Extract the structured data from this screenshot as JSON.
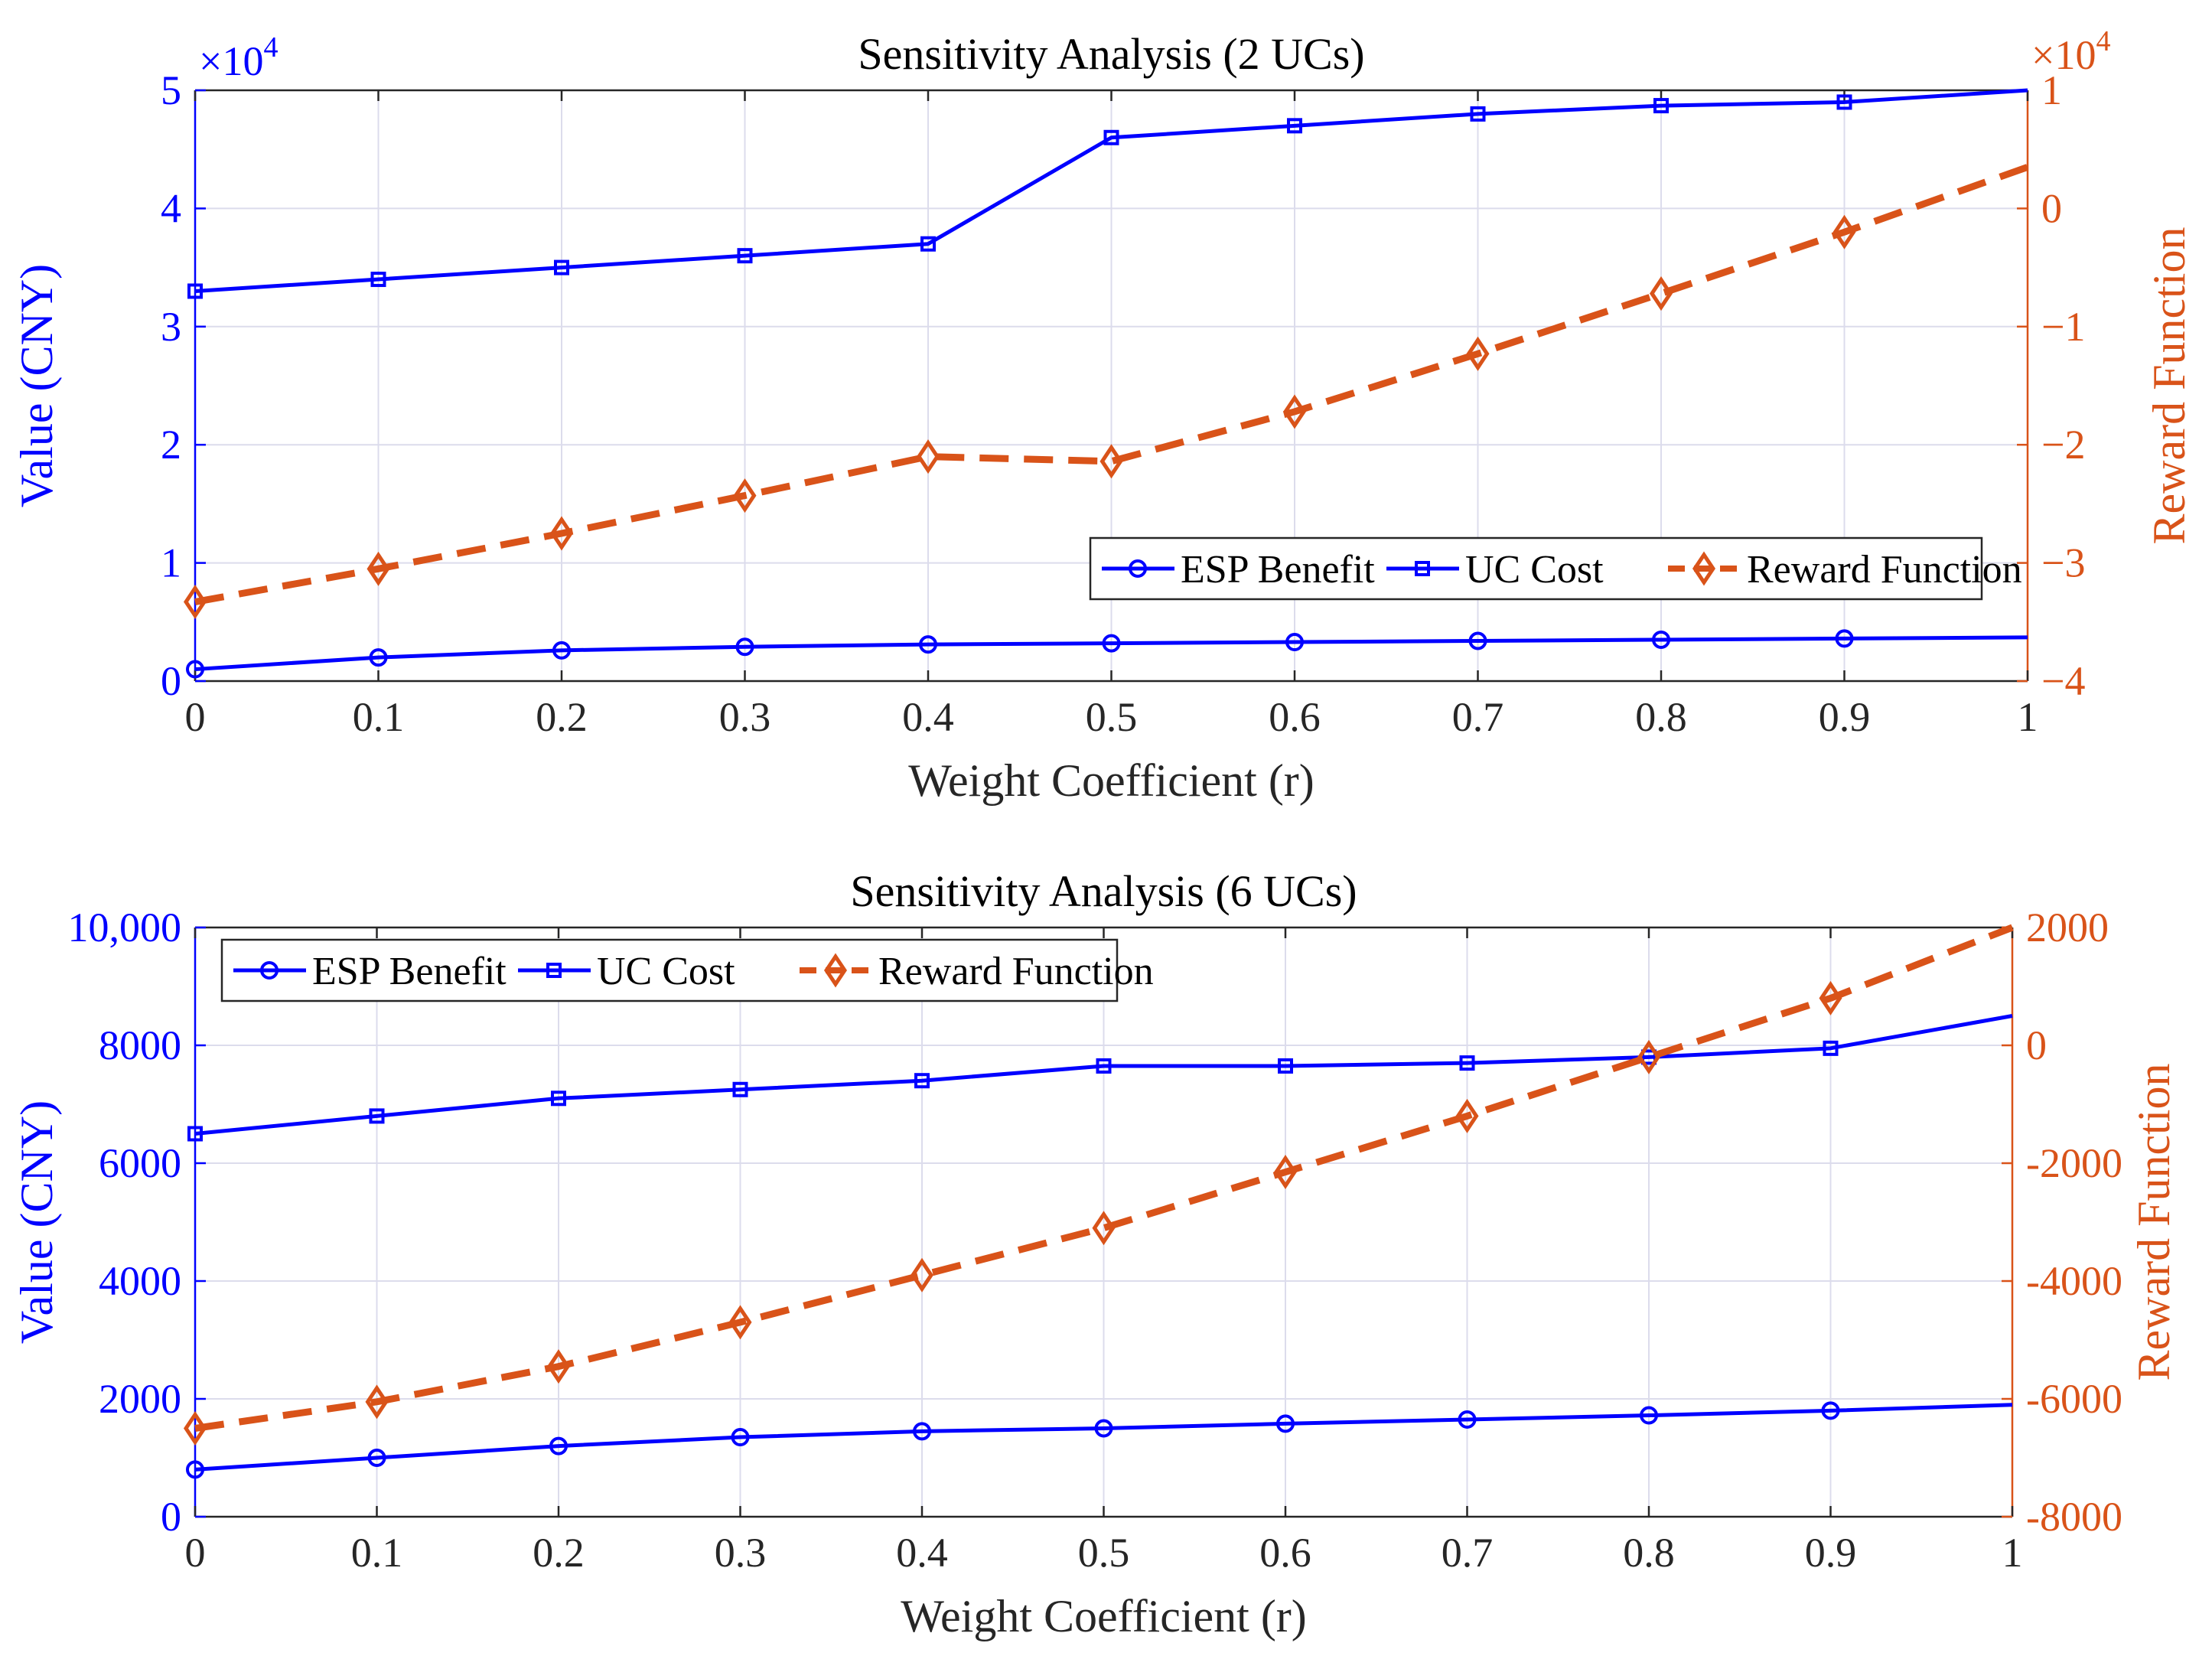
{
  "chart_data": [
    {
      "type": "line",
      "title": "Sensitivity Analysis (2 UCs)",
      "xlabel": "Weight Coefficient (r)",
      "ylabel_left": "Value (CNY)",
      "ylabel_right": "Reward Function",
      "left_exponent_label": "×10",
      "left_exponent_power": "4",
      "right_exponent_label": "×10",
      "right_exponent_power": "4",
      "x": [
        0,
        0.1,
        0.2,
        0.3,
        0.4,
        0.5,
        0.6,
        0.7,
        0.8,
        0.9,
        1
      ],
      "xticks": [
        "0",
        "0.1",
        "0.2",
        "0.3",
        "0.4",
        "0.5",
        "0.6",
        "0.7",
        "0.8",
        "0.9",
        "1"
      ],
      "xlim": [
        0,
        1
      ],
      "ylim_left": [
        0,
        5
      ],
      "yticks_left": [
        "0",
        "1",
        "2",
        "3",
        "4",
        "5"
      ],
      "ylim_right": [
        -4,
        1
      ],
      "yticks_right": [
        "−4",
        "−3",
        "−2",
        "−1",
        "0",
        "1"
      ],
      "grid": true,
      "legend_position": "lower-right",
      "series": [
        {
          "name": "ESP Benefit",
          "axis": "left",
          "marker": "circle",
          "style": "solid",
          "values": [
            0.1,
            0.2,
            0.26,
            0.29,
            0.31,
            0.32,
            0.33,
            0.34,
            0.35,
            0.36,
            0.37
          ]
        },
        {
          "name": "UC Cost",
          "axis": "left",
          "marker": "square",
          "style": "solid",
          "values": [
            3.3,
            3.4,
            3.5,
            3.6,
            3.7,
            4.6,
            4.7,
            4.8,
            4.87,
            4.9,
            5.0
          ]
        },
        {
          "name": "Reward Function",
          "axis": "right",
          "marker": "diamond",
          "style": "dashed",
          "values": [
            -3.33,
            -3.05,
            -2.75,
            -2.43,
            -2.1,
            -2.14,
            -1.72,
            -1.23,
            -0.72,
            -0.2,
            0.35
          ]
        }
      ]
    },
    {
      "type": "line",
      "title": "Sensitivity Analysis (6 UCs)",
      "xlabel": "Weight Coefficient (r)",
      "ylabel_left": "Value (CNY)",
      "ylabel_right": "Reward Function",
      "x": [
        0,
        0.1,
        0.2,
        0.3,
        0.4,
        0.5,
        0.6,
        0.7,
        0.8,
        0.9,
        1
      ],
      "xticks": [
        "0",
        "0.1",
        "0.2",
        "0.3",
        "0.4",
        "0.5",
        "0.6",
        "0.7",
        "0.8",
        "0.9",
        "1"
      ],
      "xlim": [
        0,
        1
      ],
      "ylim_left": [
        0,
        10000
      ],
      "yticks_left": [
        "0",
        "2000",
        "4000",
        "6000",
        "8000",
        "10,000"
      ],
      "ylim_right": [
        -8000,
        2000
      ],
      "yticks_right": [
        "-8000",
        "-6000",
        "-4000",
        "-2000",
        "0",
        "2000"
      ],
      "grid": true,
      "legend_position": "top-left",
      "series": [
        {
          "name": "ESP Benefit",
          "axis": "left",
          "marker": "circle",
          "style": "solid",
          "values": [
            800,
            1000,
            1200,
            1350,
            1450,
            1500,
            1580,
            1650,
            1720,
            1800,
            1900
          ]
        },
        {
          "name": "UC Cost",
          "axis": "left",
          "marker": "square",
          "style": "solid",
          "values": [
            6500,
            6800,
            7100,
            7250,
            7400,
            7650,
            7650,
            7700,
            7800,
            7950,
            8500
          ]
        },
        {
          "name": "Reward Function",
          "axis": "right",
          "marker": "diamond",
          "style": "dashed",
          "values": [
            -6500,
            -6050,
            -5450,
            -4700,
            -3900,
            -3100,
            -2150,
            -1200,
            -200,
            800,
            2000
          ]
        }
      ]
    }
  ],
  "colors": {
    "left_axis": "#0000ff",
    "right_axis": "#d95319",
    "grid": "#dcdcec",
    "frame": "#262626",
    "text": "#262626"
  }
}
